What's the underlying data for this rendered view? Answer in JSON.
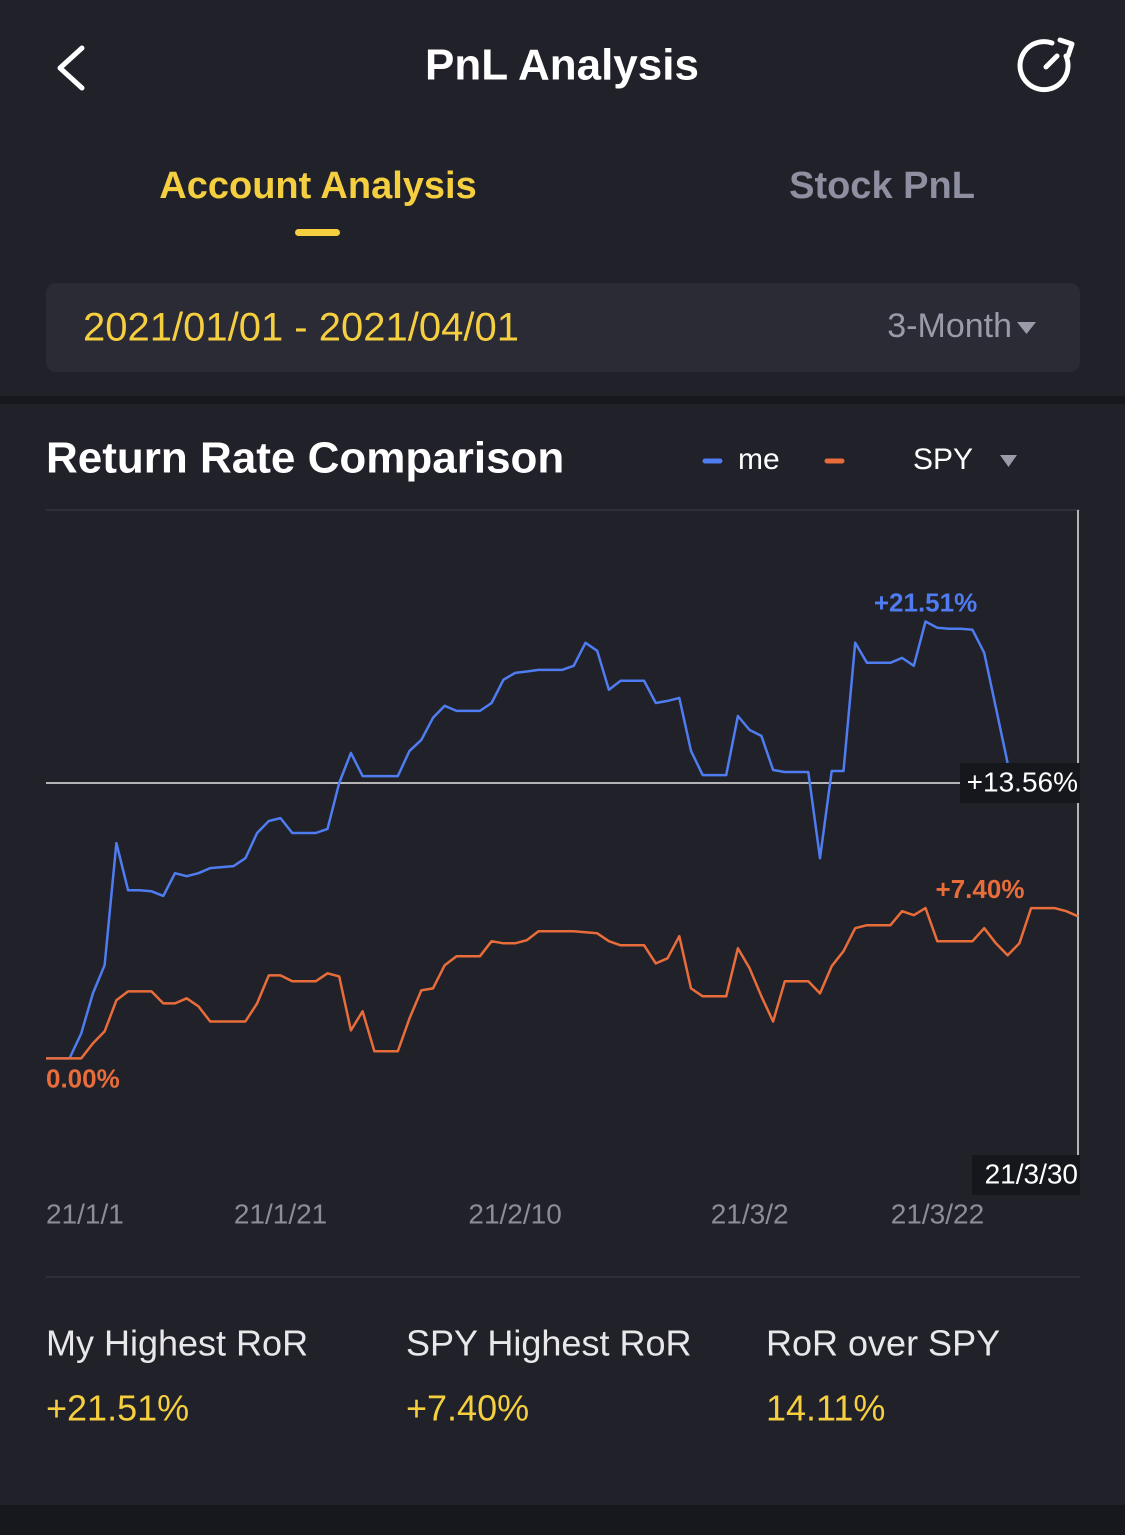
{
  "header": {
    "title": "PnL Analysis"
  },
  "tabs": [
    {
      "label": "Account Analysis",
      "active": true
    },
    {
      "label": "Stock PnL",
      "active": false
    }
  ],
  "date_range": {
    "label": "2021/01/01 - 2021/04/01",
    "period": "3-Month"
  },
  "chart_data": {
    "type": "line",
    "title": "Return Rate Comparison",
    "categories": [
      "21/1/1",
      null,
      null,
      null,
      null,
      null,
      null,
      null,
      null,
      null,
      null,
      null,
      null,
      null,
      null,
      null,
      null,
      null,
      null,
      null,
      "21/1/21",
      null,
      null,
      null,
      null,
      null,
      null,
      null,
      null,
      null,
      null,
      null,
      null,
      null,
      null,
      null,
      null,
      null,
      null,
      null,
      "21/2/10",
      null,
      null,
      null,
      null,
      null,
      null,
      null,
      null,
      null,
      null,
      null,
      null,
      null,
      null,
      null,
      null,
      null,
      null,
      null,
      "21/3/2",
      null,
      null,
      null,
      null,
      null,
      null,
      null,
      null,
      null,
      null,
      null,
      null,
      null,
      null,
      null,
      null,
      null,
      null,
      null,
      "21/3/22",
      null,
      null,
      null,
      null,
      null,
      null,
      null,
      "21/3/30"
    ],
    "series": [
      {
        "name": "me",
        "color": "#4f7cf0",
        "peak_label": "+21.51%",
        "values": [
          0,
          0,
          0,
          1.23,
          3.2,
          4.59,
          10.6,
          8.28,
          8.28,
          8.23,
          8.0,
          9.12,
          8.97,
          9.12,
          9.37,
          9.42,
          9.47,
          9.86,
          11.1,
          11.69,
          11.83,
          11.1,
          11.1,
          11.1,
          11.3,
          13.56,
          15.04,
          13.9,
          13.9,
          13.9,
          13.9,
          15.14,
          15.68,
          16.77,
          17.36,
          17.11,
          17.11,
          17.11,
          17.5,
          18.64,
          18.98,
          19.05,
          19.13,
          19.13,
          19.13,
          19.33,
          20.46,
          20.07,
          18.15,
          18.59,
          18.59,
          18.59,
          17.5,
          17.6,
          17.75,
          15.14,
          13.95,
          13.95,
          13.95,
          16.86,
          16.17,
          15.88,
          14.2,
          14.1,
          14.1,
          14.1,
          9.86,
          14.15,
          14.15,
          20.46,
          19.48,
          19.48,
          19.48,
          19.72,
          19.33,
          21.51,
          21.2,
          21.15,
          21.15,
          21.1,
          19.97,
          17.26,
          14.55,
          null,
          null,
          null,
          null,
          null,
          null
        ]
      },
      {
        "name": "SPY",
        "color": "#e96d3a",
        "peak_label": "+7.40%",
        "start_label": "0.00%",
        "values": [
          0,
          0,
          0,
          0,
          0.74,
          1.33,
          2.86,
          3.3,
          3.3,
          3.3,
          2.71,
          2.71,
          2.96,
          2.56,
          1.82,
          1.82,
          1.82,
          1.82,
          2.71,
          4.09,
          4.09,
          3.8,
          3.8,
          3.8,
          4.19,
          4.04,
          1.38,
          2.32,
          0.35,
          0.35,
          0.35,
          1.97,
          3.35,
          3.45,
          4.59,
          5.03,
          5.03,
          5.03,
          5.77,
          5.67,
          5.67,
          5.82,
          6.26,
          6.26,
          6.26,
          6.26,
          6.21,
          6.16,
          5.77,
          5.57,
          5.57,
          5.57,
          4.68,
          4.93,
          6.02,
          3.45,
          3.06,
          3.06,
          3.06,
          5.42,
          4.44,
          3.06,
          1.82,
          3.8,
          3.8,
          3.8,
          3.2,
          4.54,
          5.28,
          6.41,
          6.56,
          6.56,
          6.56,
          7.25,
          7.05,
          7.4,
          5.77,
          5.77,
          5.77,
          5.77,
          6.41,
          5.67,
          5.08,
          5.67,
          7.4,
          7.4,
          7.4,
          7.25,
          7.0
        ]
      }
    ],
    "ylim": [
      -5,
      27
    ],
    "crosshair": {
      "value": 13.56,
      "label": "+13.56%"
    }
  },
  "stats": [
    {
      "label": "My Highest RoR",
      "value": "+21.51%"
    },
    {
      "label": "SPY Highest RoR",
      "value": "+7.40%"
    },
    {
      "label": "RoR over SPY",
      "value": "14.11%"
    }
  ]
}
